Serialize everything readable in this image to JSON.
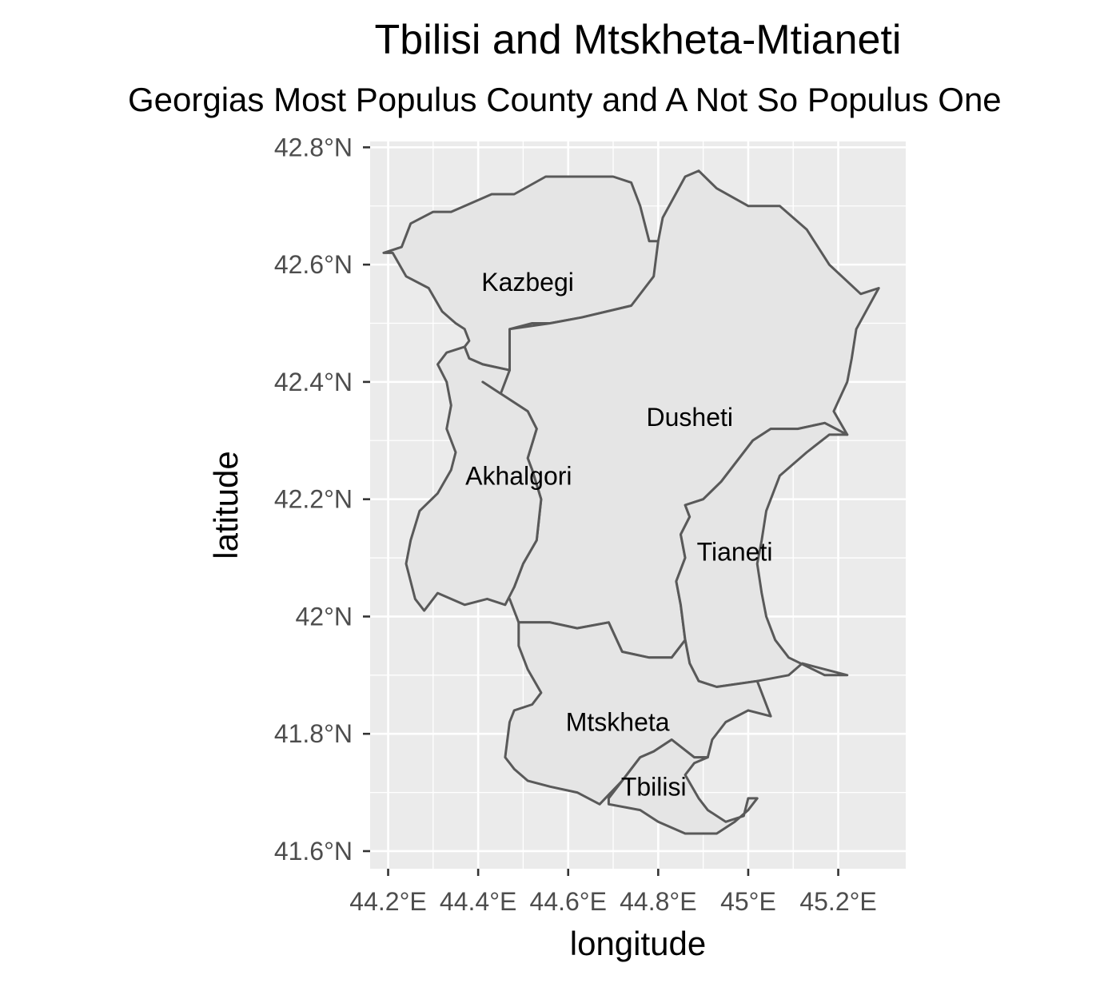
{
  "chart_data": {
    "type": "map",
    "title": "Tbilisi and Mtskheta-Mtianeti",
    "subtitle": "Georgias Most Populus County and A Not So Populus One",
    "xlabel": "longitude",
    "ylabel": "latitude",
    "xlim": [
      44.16,
      45.35
    ],
    "ylim": [
      41.57,
      42.81
    ],
    "x_ticks": [
      {
        "value": 44.2,
        "label": "44.2°E"
      },
      {
        "value": 44.4,
        "label": "44.4°E"
      },
      {
        "value": 44.6,
        "label": "44.6°E"
      },
      {
        "value": 44.8,
        "label": "44.8°E"
      },
      {
        "value": 45.0,
        "label": "45°E"
      },
      {
        "value": 45.2,
        "label": "45.2°E"
      }
    ],
    "y_ticks": [
      {
        "value": 41.6,
        "label": "41.6°N"
      },
      {
        "value": 41.8,
        "label": "41.8°N"
      },
      {
        "value": 42.0,
        "label": "42°N"
      },
      {
        "value": 42.2,
        "label": "42.2°N"
      },
      {
        "value": 42.4,
        "label": "42.4°N"
      },
      {
        "value": 42.6,
        "label": "42.6°N"
      },
      {
        "value": 42.8,
        "label": "42.8°N"
      }
    ],
    "regions": [
      {
        "name": "Kazbegi",
        "label_lon": 44.51,
        "label_lat": 42.57,
        "boundary": [
          [
            44.19,
            42.62
          ],
          [
            44.21,
            42.62
          ],
          [
            44.24,
            42.58
          ],
          [
            44.29,
            42.56
          ],
          [
            44.32,
            42.52
          ],
          [
            44.35,
            42.5
          ],
          [
            44.37,
            42.49
          ],
          [
            44.38,
            42.47
          ],
          [
            44.37,
            42.46
          ],
          [
            44.38,
            42.44
          ],
          [
            44.41,
            42.43
          ],
          [
            44.47,
            42.42
          ],
          [
            44.47,
            42.49
          ],
          [
            44.52,
            42.5
          ],
          [
            44.56,
            42.5
          ],
          [
            44.63,
            42.51
          ],
          [
            44.74,
            42.53
          ],
          [
            44.79,
            42.56
          ],
          [
            44.81,
            42.58
          ],
          [
            44.8,
            42.62
          ],
          [
            44.8,
            42.64
          ],
          [
            44.78,
            42.64
          ],
          [
            44.76,
            42.7
          ],
          [
            44.74,
            42.74
          ],
          [
            44.7,
            42.75
          ],
          [
            44.65,
            42.75
          ],
          [
            44.6,
            42.75
          ],
          [
            44.55,
            42.75
          ],
          [
            44.48,
            42.72
          ],
          [
            44.43,
            42.72
          ],
          [
            44.4,
            42.71
          ],
          [
            44.34,
            42.69
          ],
          [
            44.3,
            42.69
          ],
          [
            44.25,
            42.67
          ],
          [
            44.23,
            42.63
          ],
          [
            44.19,
            42.62
          ]
        ]
      },
      {
        "name": "Dusheti",
        "label_lon": 44.87,
        "label_lat": 42.34,
        "boundary": [
          [
            44.79,
            42.58
          ],
          [
            44.8,
            42.64
          ],
          [
            44.81,
            42.68
          ],
          [
            44.86,
            42.75
          ],
          [
            44.89,
            42.76
          ],
          [
            44.93,
            42.73
          ],
          [
            45.0,
            42.7
          ],
          [
            45.07,
            42.7
          ],
          [
            45.13,
            42.66
          ],
          [
            45.18,
            42.6
          ],
          [
            45.25,
            42.55
          ],
          [
            45.29,
            42.56
          ],
          [
            45.24,
            42.49
          ],
          [
            45.23,
            42.44
          ],
          [
            45.22,
            42.4
          ],
          [
            45.19,
            42.35
          ],
          [
            45.22,
            42.31
          ],
          [
            45.17,
            42.33
          ],
          [
            45.11,
            42.32
          ],
          [
            45.05,
            42.32
          ],
          [
            45.01,
            42.3
          ],
          [
            44.97,
            42.26
          ],
          [
            44.94,
            42.23
          ],
          [
            44.9,
            42.2
          ],
          [
            44.86,
            42.19
          ],
          [
            44.87,
            42.17
          ],
          [
            44.85,
            42.14
          ],
          [
            44.86,
            42.1
          ],
          [
            44.84,
            42.06
          ],
          [
            44.85,
            42.02
          ],
          [
            44.86,
            41.96
          ],
          [
            44.83,
            41.93
          ],
          [
            44.78,
            41.93
          ],
          [
            44.72,
            41.94
          ],
          [
            44.69,
            41.99
          ],
          [
            44.62,
            41.98
          ],
          [
            44.56,
            41.99
          ],
          [
            44.49,
            41.99
          ],
          [
            44.47,
            42.03
          ],
          [
            44.45,
            42.04
          ],
          [
            44.48,
            42.05
          ],
          [
            44.5,
            42.09
          ],
          [
            44.53,
            42.13
          ],
          [
            44.54,
            42.2
          ],
          [
            44.52,
            42.25
          ],
          [
            44.51,
            42.27
          ],
          [
            44.53,
            42.32
          ],
          [
            44.51,
            42.35
          ],
          [
            44.45,
            42.38
          ],
          [
            44.41,
            42.4
          ],
          [
            44.4,
            42.42
          ],
          [
            44.47,
            42.42
          ],
          [
            44.47,
            42.49
          ],
          [
            44.56,
            42.5
          ],
          [
            44.63,
            42.51
          ],
          [
            44.74,
            42.53
          ],
          [
            44.79,
            42.58
          ]
        ]
      },
      {
        "name": "Akhalgori",
        "label_lon": 44.49,
        "label_lat": 42.24,
        "boundary": [
          [
            44.37,
            42.46
          ],
          [
            44.38,
            42.44
          ],
          [
            44.41,
            42.43
          ],
          [
            44.47,
            42.42
          ],
          [
            44.45,
            42.38
          ],
          [
            44.41,
            42.4
          ],
          [
            44.51,
            42.35
          ],
          [
            44.53,
            42.32
          ],
          [
            44.51,
            42.27
          ],
          [
            44.52,
            42.25
          ],
          [
            44.54,
            42.2
          ],
          [
            44.53,
            42.13
          ],
          [
            44.5,
            42.09
          ],
          [
            44.48,
            42.05
          ],
          [
            44.46,
            42.02
          ],
          [
            44.42,
            42.03
          ],
          [
            44.37,
            42.02
          ],
          [
            44.31,
            42.04
          ],
          [
            44.28,
            42.01
          ],
          [
            44.26,
            42.03
          ],
          [
            44.24,
            42.09
          ],
          [
            44.25,
            42.13
          ],
          [
            44.27,
            42.18
          ],
          [
            44.31,
            42.21
          ],
          [
            44.34,
            42.25
          ],
          [
            44.35,
            42.28
          ],
          [
            44.33,
            42.32
          ],
          [
            44.34,
            42.36
          ],
          [
            44.33,
            42.4
          ],
          [
            44.31,
            42.43
          ],
          [
            44.33,
            42.45
          ],
          [
            44.37,
            42.46
          ]
        ]
      },
      {
        "name": "Tianeti",
        "label_lon": 44.97,
        "label_lat": 42.11,
        "boundary": [
          [
            45.22,
            42.31
          ],
          [
            45.17,
            42.33
          ],
          [
            45.11,
            42.32
          ],
          [
            45.05,
            42.32
          ],
          [
            45.01,
            42.3
          ],
          [
            44.97,
            42.26
          ],
          [
            44.94,
            42.23
          ],
          [
            44.9,
            42.2
          ],
          [
            44.86,
            42.19
          ],
          [
            44.87,
            42.17
          ],
          [
            44.85,
            42.14
          ],
          [
            44.86,
            42.1
          ],
          [
            44.84,
            42.06
          ],
          [
            44.85,
            42.02
          ],
          [
            44.86,
            41.96
          ],
          [
            44.87,
            41.92
          ],
          [
            44.89,
            41.89
          ],
          [
            44.93,
            41.88
          ],
          [
            45.02,
            41.89
          ],
          [
            45.09,
            41.9
          ],
          [
            45.12,
            41.92
          ],
          [
            45.22,
            41.9
          ],
          [
            45.17,
            41.9
          ],
          [
            45.09,
            41.93
          ],
          [
            45.06,
            41.96
          ],
          [
            45.04,
            42.0
          ],
          [
            45.03,
            42.04
          ],
          [
            45.02,
            42.09
          ],
          [
            45.03,
            42.13
          ],
          [
            45.04,
            42.18
          ],
          [
            45.07,
            42.24
          ],
          [
            45.13,
            42.28
          ],
          [
            45.18,
            42.31
          ],
          [
            45.22,
            42.31
          ]
        ]
      },
      {
        "name": "Mtskheta",
        "label_lon": 44.71,
        "label_lat": 41.82,
        "boundary": [
          [
            44.49,
            41.99
          ],
          [
            44.56,
            41.99
          ],
          [
            44.62,
            41.98
          ],
          [
            44.69,
            41.99
          ],
          [
            44.72,
            41.94
          ],
          [
            44.78,
            41.93
          ],
          [
            44.83,
            41.93
          ],
          [
            44.86,
            41.96
          ],
          [
            44.87,
            41.92
          ],
          [
            44.89,
            41.89
          ],
          [
            44.93,
            41.88
          ],
          [
            45.02,
            41.89
          ],
          [
            45.05,
            41.83
          ],
          [
            45.0,
            41.84
          ],
          [
            44.95,
            41.82
          ],
          [
            44.92,
            41.79
          ],
          [
            44.91,
            41.76
          ],
          [
            44.88,
            41.76
          ],
          [
            44.83,
            41.79
          ],
          [
            44.79,
            41.77
          ],
          [
            44.76,
            41.76
          ],
          [
            44.72,
            41.72
          ],
          [
            44.67,
            41.68
          ],
          [
            44.62,
            41.7
          ],
          [
            44.56,
            41.71
          ],
          [
            44.51,
            41.72
          ],
          [
            44.48,
            41.74
          ],
          [
            44.46,
            41.76
          ],
          [
            44.47,
            41.82
          ],
          [
            44.48,
            41.84
          ],
          [
            44.52,
            41.85
          ],
          [
            44.54,
            41.87
          ],
          [
            44.51,
            41.91
          ],
          [
            44.49,
            41.95
          ],
          [
            44.49,
            41.99
          ]
        ]
      },
      {
        "name": "Tbilisi",
        "label_lon": 44.79,
        "label_lat": 41.71,
        "boundary": [
          [
            44.91,
            41.76
          ],
          [
            44.88,
            41.76
          ],
          [
            44.83,
            41.79
          ],
          [
            44.79,
            41.77
          ],
          [
            44.76,
            41.76
          ],
          [
            44.72,
            41.72
          ],
          [
            44.69,
            41.69
          ],
          [
            44.69,
            41.68
          ],
          [
            44.76,
            41.67
          ],
          [
            44.8,
            41.65
          ],
          [
            44.86,
            41.63
          ],
          [
            44.93,
            41.63
          ],
          [
            44.97,
            41.65
          ],
          [
            45.0,
            41.67
          ],
          [
            45.02,
            41.69
          ],
          [
            45.0,
            41.69
          ],
          [
            44.99,
            41.66
          ],
          [
            44.95,
            41.65
          ],
          [
            44.91,
            41.67
          ],
          [
            44.89,
            41.69
          ],
          [
            44.86,
            41.73
          ],
          [
            44.88,
            41.75
          ],
          [
            44.91,
            41.76
          ]
        ]
      }
    ],
    "grid": true,
    "legend": "none"
  }
}
